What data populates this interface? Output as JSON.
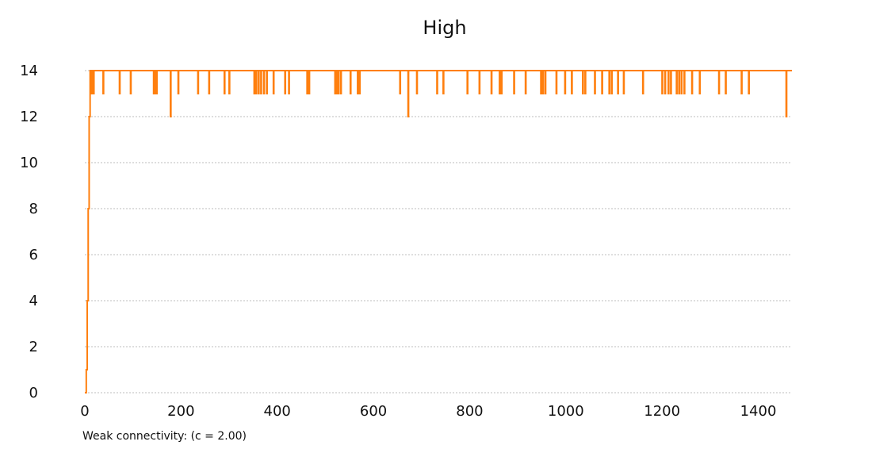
{
  "chart_data": {
    "type": "line",
    "title": "High",
    "caption": "Weak connectivity: (c = 2.00)",
    "xlabel": "",
    "ylabel": "",
    "xlim": [
      0,
      1470
    ],
    "ylim": [
      0,
      14
    ],
    "xticks": [
      0,
      200,
      400,
      600,
      800,
      1000,
      1200,
      1400
    ],
    "yticks": [
      0,
      2,
      4,
      6,
      8,
      10,
      12,
      14
    ],
    "grid": "horizontal-dashed",
    "line_color": "#ff7f0e",
    "series": [
      {
        "x": [
          0,
          3,
          3,
          5,
          5,
          7,
          7,
          9,
          9,
          11,
          11,
          1470
        ],
        "y": [
          0,
          0,
          1,
          1,
          4,
          4,
          8,
          8,
          12,
          12,
          14,
          14
        ]
      }
    ],
    "dips": [
      {
        "x": 12,
        "y": 13
      },
      {
        "x": 15,
        "y": 13
      },
      {
        "x": 18,
        "y": 13
      },
      {
        "x": 38,
        "y": 13
      },
      {
        "x": 72,
        "y": 13
      },
      {
        "x": 95,
        "y": 13
      },
      {
        "x": 143,
        "y": 13
      },
      {
        "x": 146,
        "y": 13
      },
      {
        "x": 149,
        "y": 13
      },
      {
        "x": 178,
        "y": 12
      },
      {
        "x": 194,
        "y": 13
      },
      {
        "x": 235,
        "y": 13
      },
      {
        "x": 258,
        "y": 13
      },
      {
        "x": 290,
        "y": 13
      },
      {
        "x": 300,
        "y": 13
      },
      {
        "x": 352,
        "y": 13
      },
      {
        "x": 356,
        "y": 13
      },
      {
        "x": 361,
        "y": 13
      },
      {
        "x": 366,
        "y": 13
      },
      {
        "x": 372,
        "y": 13
      },
      {
        "x": 378,
        "y": 13
      },
      {
        "x": 392,
        "y": 13
      },
      {
        "x": 416,
        "y": 13
      },
      {
        "x": 424,
        "y": 13
      },
      {
        "x": 462,
        "y": 13
      },
      {
        "x": 466,
        "y": 13
      },
      {
        "x": 520,
        "y": 13
      },
      {
        "x": 523,
        "y": 13
      },
      {
        "x": 527,
        "y": 13
      },
      {
        "x": 532,
        "y": 13
      },
      {
        "x": 552,
        "y": 13
      },
      {
        "x": 567,
        "y": 13
      },
      {
        "x": 571,
        "y": 13
      },
      {
        "x": 655,
        "y": 13
      },
      {
        "x": 672,
        "y": 12
      },
      {
        "x": 690,
        "y": 13
      },
      {
        "x": 732,
        "y": 13
      },
      {
        "x": 745,
        "y": 13
      },
      {
        "x": 795,
        "y": 13
      },
      {
        "x": 820,
        "y": 13
      },
      {
        "x": 845,
        "y": 13
      },
      {
        "x": 862,
        "y": 13
      },
      {
        "x": 866,
        "y": 13
      },
      {
        "x": 892,
        "y": 13
      },
      {
        "x": 916,
        "y": 13
      },
      {
        "x": 948,
        "y": 13
      },
      {
        "x": 952,
        "y": 13
      },
      {
        "x": 957,
        "y": 13
      },
      {
        "x": 980,
        "y": 13
      },
      {
        "x": 998,
        "y": 13
      },
      {
        "x": 1012,
        "y": 13
      },
      {
        "x": 1035,
        "y": 13
      },
      {
        "x": 1040,
        "y": 13
      },
      {
        "x": 1060,
        "y": 13
      },
      {
        "x": 1075,
        "y": 13
      },
      {
        "x": 1090,
        "y": 13
      },
      {
        "x": 1095,
        "y": 13
      },
      {
        "x": 1108,
        "y": 13
      },
      {
        "x": 1120,
        "y": 13
      },
      {
        "x": 1160,
        "y": 13
      },
      {
        "x": 1200,
        "y": 13
      },
      {
        "x": 1206,
        "y": 13
      },
      {
        "x": 1213,
        "y": 13
      },
      {
        "x": 1218,
        "y": 13
      },
      {
        "x": 1230,
        "y": 13
      },
      {
        "x": 1235,
        "y": 13
      },
      {
        "x": 1240,
        "y": 13
      },
      {
        "x": 1246,
        "y": 13
      },
      {
        "x": 1262,
        "y": 13
      },
      {
        "x": 1278,
        "y": 13
      },
      {
        "x": 1318,
        "y": 13
      },
      {
        "x": 1332,
        "y": 13
      },
      {
        "x": 1365,
        "y": 13
      },
      {
        "x": 1380,
        "y": 13
      },
      {
        "x": 1458,
        "y": 12
      }
    ]
  }
}
